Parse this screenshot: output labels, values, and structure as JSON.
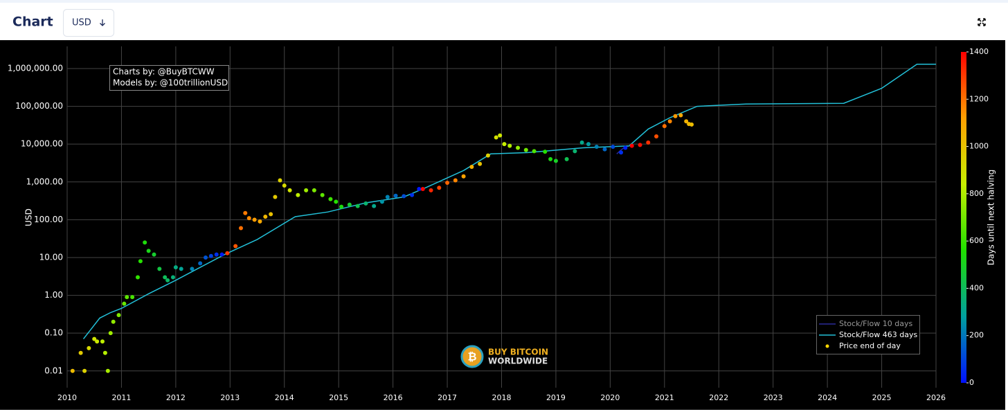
{
  "header": {
    "title": "Chart",
    "currency": "USD"
  },
  "chart_data": {
    "type": "scatter",
    "ylabel": "USD",
    "annotation": [
      "Charts by: @BuyBTCWW",
      "Models by: @100trillionUSD"
    ],
    "watermark": [
      "BUY BITCOIN",
      "WORLDWIDE"
    ],
    "log_y": true,
    "grid": true,
    "legend": "lower right",
    "xlim": [
      2010,
      2026
    ],
    "xticks": [
      2010,
      2011,
      2012,
      2013,
      2014,
      2015,
      2016,
      2017,
      2018,
      2019,
      2020,
      2021,
      2022,
      2023,
      2024,
      2025,
      2026
    ],
    "ylim": [
      0.0036,
      3850000
    ],
    "yticks": [
      {
        "value": 0.01,
        "label": "0.01"
      },
      {
        "value": 0.1,
        "label": "0.10"
      },
      {
        "value": 1,
        "label": "1.00"
      },
      {
        "value": 10,
        "label": "10.00"
      },
      {
        "value": 100,
        "label": "100.00"
      },
      {
        "value": 1000,
        "label": "1,000.00"
      },
      {
        "value": 10000,
        "label": "10,000.00"
      },
      {
        "value": 100000,
        "label": "100,000.00"
      },
      {
        "value": 1000000,
        "label": "1,000,000.00"
      }
    ],
    "colorbar": {
      "title": "Days until next halving",
      "lim": [
        0,
        1400
      ],
      "ticks": [
        0,
        200,
        400,
        600,
        800,
        1000,
        1200,
        1400
      ],
      "colors": [
        "#0010ff",
        "#00a0a0",
        "#20e000",
        "#c8f000",
        "#ffa000",
        "#ff0000"
      ]
    },
    "series": [
      {
        "name": "Stock/Flow 10 days",
        "type": "line",
        "color": "#2a2a9a",
        "x": [
          2020.12,
          2020.2,
          2020.28,
          2020.36
        ],
        "values": [
          5500,
          7000,
          8500,
          9000
        ]
      },
      {
        "name": "Stock/Flow 463 days",
        "type": "line",
        "color": "#22c0d8",
        "x": [
          2010.3,
          2010.6,
          2010.8,
          2011.0,
          2011.5,
          2012.0,
          2012.5,
          2012.9,
          2013.5,
          2014.2,
          2014.8,
          2015.5,
          2016.2,
          2016.6,
          2017.3,
          2017.8,
          2018.5,
          2019.5,
          2020.35,
          2020.7,
          2021.1,
          2021.6,
          2022.5,
          2024.3,
          2025.0,
          2025.65,
          2026
        ],
        "values": [
          0.07,
          0.25,
          0.35,
          0.45,
          1.1,
          2.5,
          6,
          12,
          30,
          120,
          160,
          280,
          400,
          700,
          2000,
          5500,
          6000,
          8000,
          9000,
          25000,
          50000,
          100000,
          115000,
          120000,
          300000,
          1300000,
          1300000
        ]
      },
      {
        "name": "Price end of day",
        "type": "scatter",
        "color": "#ffd700",
        "x": [
          2010.1,
          2010.25,
          2010.32,
          2010.4,
          2010.5,
          2010.55,
          2010.65,
          2010.7,
          2010.75,
          2010.8,
          2010.85,
          2010.95,
          2011.05,
          2011.1,
          2011.2,
          2011.3,
          2011.35,
          2011.43,
          2011.5,
          2011.6,
          2011.7,
          2011.8,
          2011.85,
          2011.95,
          2012.0,
          2012.1,
          2012.3,
          2012.45,
          2012.55,
          2012.65,
          2012.75,
          2012.85,
          2012.95,
          2013.1,
          2013.2,
          2013.28,
          2013.35,
          2013.45,
          2013.55,
          2013.65,
          2013.75,
          2013.83,
          2013.92,
          2014.0,
          2014.1,
          2014.25,
          2014.4,
          2014.55,
          2014.7,
          2014.85,
          2014.95,
          2015.05,
          2015.2,
          2015.35,
          2015.5,
          2015.65,
          2015.8,
          2015.9,
          2016.05,
          2016.2,
          2016.35,
          2016.48,
          2016.55,
          2016.7,
          2016.85,
          2017.0,
          2017.15,
          2017.3,
          2017.45,
          2017.6,
          2017.75,
          2017.9,
          2017.97,
          2018.05,
          2018.15,
          2018.3,
          2018.45,
          2018.6,
          2018.8,
          2018.9,
          2019.0,
          2019.2,
          2019.35,
          2019.48,
          2019.6,
          2019.75,
          2019.9,
          2020.05,
          2020.2,
          2020.28,
          2020.4,
          2020.55,
          2020.7,
          2020.85,
          2021.0,
          2021.1,
          2021.2,
          2021.3,
          2021.4,
          2021.45,
          2021.5
        ],
        "values": [
          0.01,
          0.03,
          0.01,
          0.04,
          0.07,
          0.06,
          0.06,
          0.03,
          0.01,
          0.1,
          0.2,
          0.3,
          0.6,
          0.9,
          0.9,
          3,
          8,
          25,
          15,
          12,
          5,
          3,
          2.5,
          3,
          5.5,
          5,
          5,
          7,
          10,
          11,
          12,
          12,
          13,
          20,
          60,
          150,
          110,
          100,
          90,
          120,
          140,
          400,
          1100,
          800,
          600,
          450,
          600,
          600,
          450,
          350,
          300,
          220,
          250,
          230,
          270,
          230,
          300,
          400,
          430,
          420,
          450,
          650,
          650,
          600,
          700,
          950,
          1100,
          1400,
          2500,
          3000,
          5000,
          15000,
          17000,
          10000,
          9000,
          8000,
          7000,
          6500,
          6300,
          4000,
          3600,
          4000,
          6500,
          11000,
          10000,
          8500,
          7300,
          8500,
          6000,
          8000,
          9000,
          9500,
          11000,
          16000,
          30000,
          40000,
          55000,
          58000,
          40000,
          34000,
          33000
        ],
        "days": [
          1026,
          971,
          945,
          916,
          880,
          861,
          825,
          807,
          788,
          770,
          752,
          715,
          679,
          661,
          624,
          588,
          569,
          540,
          515,
          478,
          442,
          405,
          387,
          350,
          332,
          296,
          223,
          168,
          131,
          95,
          58,
          22,
          1303,
          1250,
          1205,
          1186,
          1161,
          1125,
          1088,
          1044,
          1007,
          978,
          945,
          916,
          880,
          825,
          770,
          715,
          661,
          606,
          569,
          533,
          478,
          423,
          369,
          314,
          259,
          223,
          172,
          117,
          62,
          15,
          1391,
          1336,
          1281,
          1223,
          1168,
          1114,
          1059,
          1004,
          950,
          895,
          869,
          840,
          803,
          749,
          694,
          639,
          566,
          529,
          493,
          420,
          365,
          318,
          276,
          221,
          168,
          113,
          58,
          29,
          1400,
          1372,
          1318,
          1263,
          1205,
          1168,
          1132,
          1095,
          1059,
          1040,
          1022
        ]
      }
    ]
  }
}
